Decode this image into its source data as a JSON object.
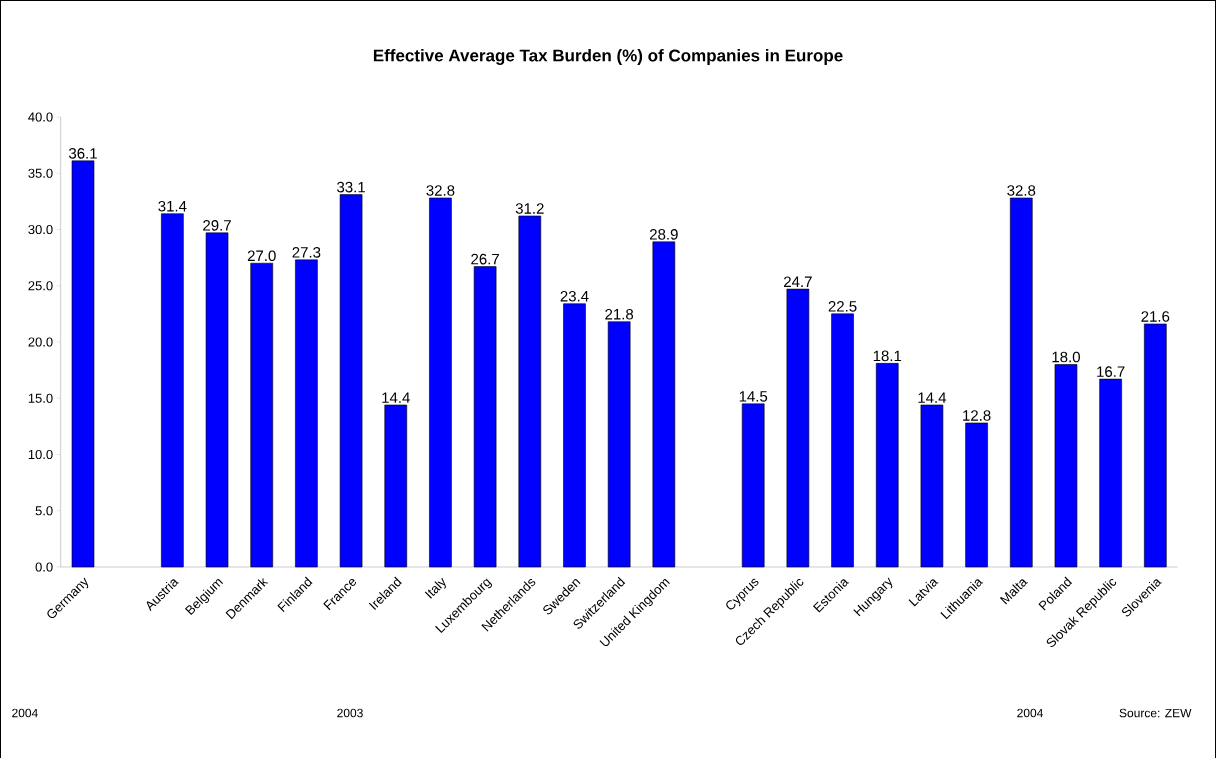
{
  "chart_data": {
    "type": "bar",
    "title": "Effective Average Tax Burden (%) of Companies in Europe",
    "categories": [
      "Germany",
      null,
      "Austria",
      "Belgium",
      "Denmark",
      "Finland",
      "France",
      "Ireland",
      "Italy",
      "Luxembourg",
      "Netherlands",
      "Sweden",
      "Switzerland",
      "United Kingdom",
      null,
      "Cyprus",
      "Czech Republic",
      "Estonia",
      "Hungary",
      "Latvia",
      "Lithuania",
      "Malta",
      "Poland",
      "Slovak Republic",
      "Slovenia"
    ],
    "values": [
      36.1,
      null,
      31.4,
      29.7,
      27.0,
      27.3,
      33.1,
      14.4,
      32.8,
      26.7,
      31.2,
      23.4,
      21.8,
      28.9,
      null,
      14.5,
      24.7,
      22.5,
      18.1,
      14.4,
      12.8,
      32.8,
      18.0,
      16.7,
      21.6
    ],
    "value_labels": [
      "36.1",
      null,
      "31.4",
      "29.7",
      "27.0",
      "27.3",
      "33.1",
      "14.4",
      "32.8",
      "26.7",
      "31.2",
      "23.4",
      "21.8",
      "28.9",
      null,
      "14.5",
      "24.7",
      "22.5",
      "18.1",
      "14.4",
      "12.8",
      "32.8",
      "18.0",
      "16.7",
      "21.6"
    ],
    "color": "#0000ff",
    "ylim": [
      0,
      40
    ],
    "yticks": [
      {
        "value": 0,
        "label": "0.0"
      },
      {
        "value": 5,
        "label": "5.0"
      },
      {
        "value": 10,
        "label": "10.0"
      },
      {
        "value": 15,
        "label": "15.0"
      },
      {
        "value": 20,
        "label": "20.0"
      },
      {
        "value": 25,
        "label": "25.0"
      },
      {
        "value": 30,
        "label": "30.0"
      },
      {
        "value": 35,
        "label": "35.0"
      },
      {
        "value": 40,
        "label": "40.0"
      }
    ],
    "annotations": [
      "2004",
      "2003",
      "2004",
      "Source: ZEW"
    ]
  }
}
